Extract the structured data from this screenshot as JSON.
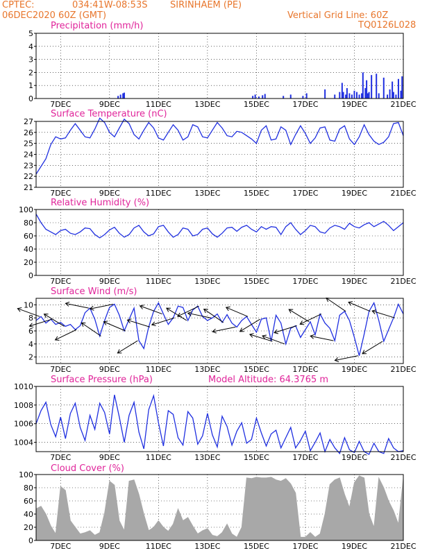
{
  "header": {
    "source": "CPTEC:",
    "coords": "034:41W-08:53S",
    "location": "SIRINHAEM (PE)",
    "run": "06DEC2020 60Z (GMT)",
    "grid_note": "Vertical Grid Line: 60Z",
    "model": "TQ0126L028"
  },
  "colors": {
    "header": "#e8762c",
    "titles": "#e0249a",
    "series": "#1f2fe0",
    "cloud": "#a8a8a8"
  },
  "x_labels": [
    "7DEC",
    "9DEC",
    "11DEC",
    "13DEC",
    "15DEC",
    "17DEC",
    "19DEC",
    "21DEC"
  ],
  "chart_data": [
    {
      "type": "bar",
      "title": "Precipitation (mm/h)",
      "ylim": [
        0,
        5
      ],
      "yticks": [
        0,
        1,
        2,
        3,
        4,
        5
      ],
      "x_range_days": [
        6,
        21
      ],
      "x": [
        9.35,
        9.45,
        9.55,
        9.6,
        14.85,
        14.95,
        15.1,
        15.25,
        15.35,
        16.1,
        16.4,
        16.9,
        17.05,
        17.8,
        18.2,
        18.4,
        18.5,
        18.55,
        18.65,
        18.7,
        18.8,
        18.9,
        19.0,
        19.1,
        19.2,
        19.3,
        19.35,
        19.45,
        19.5,
        19.55,
        19.6,
        19.7,
        19.9,
        20.0,
        20.2,
        20.35,
        20.45,
        20.55,
        20.6,
        20.7,
        20.8,
        20.9,
        20.95
      ],
      "values": [
        0.2,
        0.3,
        0.4,
        0.45,
        0.2,
        0.3,
        0.15,
        0.25,
        0.35,
        0.2,
        0.3,
        0.2,
        0.4,
        0.7,
        0.3,
        0.5,
        1.2,
        0.5,
        0.3,
        0.8,
        0.4,
        0.3,
        0.6,
        0.5,
        0.3,
        0.4,
        2.0,
        0.8,
        1.4,
        0.4,
        0.5,
        1.8,
        1.9,
        0.4,
        1.6,
        0.3,
        0.7,
        1.3,
        0.5,
        0.3,
        1.5,
        0.6,
        1.7
      ]
    },
    {
      "type": "line",
      "title": "Surface Temperature (nC)",
      "ylim": [
        21,
        27
      ],
      "yticks": [
        21,
        22,
        23,
        24,
        25,
        26,
        27
      ],
      "x_range_days": [
        6,
        21
      ],
      "x": [
        6.0,
        6.2,
        6.4,
        6.6,
        6.8,
        7.0,
        7.2,
        7.4,
        7.6,
        7.8,
        8.0,
        8.2,
        8.4,
        8.6,
        8.8,
        9.0,
        9.2,
        9.4,
        9.6,
        9.8,
        10.0,
        10.2,
        10.4,
        10.6,
        10.8,
        11.0,
        11.2,
        11.4,
        11.6,
        11.8,
        12.0,
        12.2,
        12.4,
        12.6,
        12.8,
        13.0,
        13.2,
        13.4,
        13.6,
        13.8,
        14.0,
        14.2,
        14.4,
        14.6,
        14.8,
        15.0,
        15.2,
        15.4,
        15.6,
        15.8,
        16.0,
        16.2,
        16.4,
        16.6,
        16.8,
        17.0,
        17.2,
        17.4,
        17.6,
        17.8,
        18.0,
        18.2,
        18.4,
        18.6,
        18.8,
        19.0,
        19.2,
        19.4,
        19.6,
        19.8,
        20.0,
        20.2,
        20.4,
        20.6,
        20.8,
        21.0
      ],
      "values": [
        22.2,
        22.9,
        23.6,
        24.9,
        25.6,
        25.4,
        25.5,
        26.2,
        26.8,
        26.2,
        25.6,
        25.5,
        26.3,
        27.3,
        26.9,
        26.0,
        25.6,
        26.4,
        27.2,
        26.8,
        25.8,
        25.4,
        26.2,
        26.9,
        26.4,
        25.5,
        25.3,
        26.0,
        26.7,
        26.2,
        25.3,
        25.6,
        26.7,
        26.5,
        25.6,
        25.5,
        26.2,
        26.9,
        26.4,
        25.7,
        25.6,
        26.1,
        26.0,
        25.7,
        25.4,
        25.0,
        26.2,
        26.6,
        25.3,
        25.4,
        26.5,
        26.2,
        24.9,
        25.8,
        26.6,
        25.9,
        25.0,
        25.5,
        26.4,
        26.5,
        25.3,
        25.2,
        26.3,
        26.6,
        25.4,
        24.9,
        25.6,
        26.7,
        25.8,
        25.2,
        24.9,
        25.1,
        25.6,
        26.8,
        26.9,
        25.7
      ]
    },
    {
      "type": "line",
      "title": "Relative Humidity (%)",
      "ylim": [
        0,
        100
      ],
      "yticks": [
        0,
        20,
        40,
        60,
        80,
        100
      ],
      "x_range_days": [
        6,
        21
      ],
      "x": [
        6.0,
        6.2,
        6.4,
        6.6,
        6.8,
        7.0,
        7.2,
        7.4,
        7.6,
        7.8,
        8.0,
        8.2,
        8.4,
        8.6,
        8.8,
        9.0,
        9.2,
        9.4,
        9.6,
        9.8,
        10.0,
        10.2,
        10.4,
        10.6,
        10.8,
        11.0,
        11.2,
        11.4,
        11.6,
        11.8,
        12.0,
        12.2,
        12.4,
        12.6,
        12.8,
        13.0,
        13.2,
        13.4,
        13.6,
        13.8,
        14.0,
        14.2,
        14.4,
        14.6,
        14.8,
        15.0,
        15.2,
        15.4,
        15.6,
        15.8,
        16.0,
        16.2,
        16.4,
        16.6,
        16.8,
        17.0,
        17.2,
        17.4,
        17.6,
        17.8,
        18.0,
        18.2,
        18.4,
        18.6,
        18.8,
        19.0,
        19.2,
        19.4,
        19.6,
        19.8,
        20.0,
        20.2,
        20.4,
        20.6,
        20.8,
        21.0
      ],
      "values": [
        93,
        80,
        70,
        66,
        62,
        68,
        70,
        64,
        62,
        66,
        72,
        71,
        62,
        57,
        62,
        69,
        73,
        64,
        58,
        62,
        72,
        76,
        66,
        60,
        63,
        74,
        76,
        66,
        58,
        62,
        72,
        70,
        60,
        62,
        70,
        72,
        63,
        58,
        64,
        72,
        73,
        67,
        73,
        76,
        70,
        66,
        74,
        70,
        74,
        73,
        62,
        74,
        80,
        70,
        62,
        68,
        76,
        74,
        66,
        64,
        72,
        76,
        74,
        70,
        79,
        74,
        72,
        77,
        80,
        74,
        78,
        82,
        76,
        68,
        74,
        80
      ]
    },
    {
      "type": "line",
      "title": "Surface Wind (m/s)",
      "ylim": [
        1,
        11
      ],
      "yticks": [
        2,
        4,
        6,
        8,
        10
      ],
      "x_range_days": [
        6,
        21
      ],
      "x": [
        6.0,
        6.2,
        6.4,
        6.6,
        6.8,
        7.0,
        7.2,
        7.4,
        7.6,
        7.8,
        8.0,
        8.2,
        8.4,
        8.6,
        8.8,
        9.0,
        9.2,
        9.4,
        9.6,
        9.8,
        10.0,
        10.2,
        10.4,
        10.6,
        10.8,
        11.0,
        11.2,
        11.4,
        11.6,
        11.8,
        12.0,
        12.2,
        12.4,
        12.6,
        12.8,
        13.0,
        13.2,
        13.4,
        13.6,
        13.8,
        14.0,
        14.2,
        14.4,
        14.6,
        14.8,
        15.0,
        15.2,
        15.4,
        15.6,
        15.8,
        16.0,
        16.2,
        16.4,
        16.6,
        16.8,
        17.0,
        17.2,
        17.4,
        17.6,
        17.8,
        18.0,
        18.2,
        18.4,
        18.6,
        18.8,
        19.0,
        19.2,
        19.4,
        19.6,
        19.8,
        20.0,
        20.2,
        20.4,
        20.6,
        20.8,
        21.0
      ],
      "values": [
        7.6,
        8.2,
        7.2,
        7.8,
        7.0,
        7.3,
        6.7,
        7.0,
        6.2,
        6.8,
        8.8,
        9.5,
        7.8,
        5.2,
        7.6,
        9.6,
        10.1,
        8.4,
        6.0,
        7.8,
        9.5,
        4.5,
        3.3,
        6.6,
        9.0,
        10.3,
        8.6,
        7.0,
        8.0,
        9.8,
        9.6,
        7.6,
        9.2,
        9.8,
        8.2,
        7.6,
        8.0,
        8.6,
        7.3,
        8.5,
        7.2,
        6.6,
        7.6,
        8.2,
        7.0,
        5.8,
        7.8,
        8.0,
        4.4,
        8.4,
        7.2,
        4.0,
        6.4,
        6.8,
        5.0,
        6.2,
        7.4,
        5.4,
        8.6,
        7.2,
        6.4,
        4.5,
        8.4,
        9.0,
        7.6,
        5.0,
        2.2,
        5.5,
        9.0,
        10.3,
        7.6,
        4.4,
        6.2,
        8.0,
        10.1,
        8.6
      ]
    },
    {
      "type": "line",
      "title": "Surface Pressure (hPa)",
      "annotation": "Model Altitude: 64.3765 m",
      "ylim": [
        1003,
        1010
      ],
      "yticks": [
        1004,
        1006,
        1008,
        1010
      ],
      "x_range_days": [
        6,
        21
      ],
      "x": [
        6.0,
        6.2,
        6.4,
        6.6,
        6.8,
        7.0,
        7.2,
        7.4,
        7.6,
        7.8,
        8.0,
        8.2,
        8.4,
        8.6,
        8.8,
        9.0,
        9.2,
        9.4,
        9.6,
        9.8,
        10.0,
        10.2,
        10.4,
        10.6,
        10.8,
        11.0,
        11.2,
        11.4,
        11.6,
        11.8,
        12.0,
        12.2,
        12.4,
        12.6,
        12.8,
        13.0,
        13.2,
        13.4,
        13.6,
        13.8,
        14.0,
        14.2,
        14.4,
        14.6,
        14.8,
        15.0,
        15.2,
        15.4,
        15.6,
        15.8,
        16.0,
        16.2,
        16.4,
        16.6,
        16.8,
        17.0,
        17.2,
        17.4,
        17.6,
        17.8,
        18.0,
        18.2,
        18.4,
        18.6,
        18.8,
        19.0,
        19.2,
        19.4,
        19.6,
        19.8,
        20.0,
        20.2,
        20.4,
        20.6,
        20.8,
        21.0
      ],
      "values": [
        1006.0,
        1007.4,
        1008.3,
        1005.9,
        1004.6,
        1006.7,
        1004.4,
        1007.1,
        1008.2,
        1005.6,
        1004.2,
        1006.9,
        1005.4,
        1008.2,
        1007.2,
        1004.9,
        1009.1,
        1006.7,
        1004.0,
        1006.9,
        1008.3,
        1005.1,
        1003.3,
        1007.5,
        1009.0,
        1006.1,
        1003.6,
        1007.4,
        1007.0,
        1004.5,
        1003.7,
        1007.3,
        1006.6,
        1003.8,
        1004.7,
        1007.1,
        1004.8,
        1003.5,
        1006.8,
        1005.7,
        1003.7,
        1005.2,
        1006.1,
        1003.9,
        1004.3,
        1006.6,
        1005.0,
        1003.6,
        1004.9,
        1005.3,
        1003.4,
        1004.5,
        1005.6,
        1003.4,
        1004.2,
        1005.2,
        1003.1,
        1004.0,
        1005.0,
        1003.0,
        1004.3,
        1003.4,
        1002.8,
        1004.5,
        1003.2,
        1002.9,
        1004.1,
        1003.0,
        1002.7,
        1003.9,
        1003.0,
        1002.8,
        1004.4,
        1003.4,
        1003.0,
        1003.1
      ]
    },
    {
      "type": "area",
      "title": "Cloud Cover (%)",
      "ylim": [
        0,
        100
      ],
      "yticks": [
        0,
        20,
        40,
        60,
        80,
        100
      ],
      "x_range_days": [
        6,
        21
      ],
      "x": [
        6.0,
        6.2,
        6.4,
        6.6,
        6.8,
        7.0,
        7.2,
        7.4,
        7.6,
        7.8,
        8.0,
        8.2,
        8.4,
        8.6,
        8.8,
        9.0,
        9.2,
        9.4,
        9.6,
        9.8,
        10.0,
        10.2,
        10.4,
        10.6,
        10.8,
        11.0,
        11.2,
        11.4,
        11.6,
        11.8,
        12.0,
        12.2,
        12.4,
        12.6,
        12.8,
        13.0,
        13.2,
        13.4,
        13.6,
        13.8,
        14.0,
        14.2,
        14.4,
        14.6,
        14.8,
        15.0,
        15.2,
        15.4,
        15.6,
        15.8,
        16.0,
        16.2,
        16.4,
        16.6,
        16.8,
        17.0,
        17.2,
        17.4,
        17.6,
        17.8,
        18.0,
        18.2,
        18.4,
        18.6,
        18.8,
        19.0,
        19.2,
        19.4,
        19.6,
        19.8,
        20.0,
        20.2,
        20.4,
        20.6,
        20.8,
        21.0
      ],
      "values": [
        48,
        52,
        40,
        22,
        10,
        82,
        76,
        30,
        20,
        10,
        12,
        15,
        8,
        12,
        42,
        90,
        84,
        30,
        15,
        90,
        92,
        70,
        40,
        15,
        20,
        30,
        20,
        14,
        25,
        48,
        30,
        35,
        22,
        10,
        15,
        18,
        8,
        6,
        12,
        25,
        10,
        5,
        20,
        95,
        94,
        96,
        95,
        95,
        96,
        92,
        90,
        94,
        86,
        72,
        5,
        5,
        12,
        5,
        10,
        40,
        85,
        92,
        95,
        70,
        50,
        88,
        98,
        95,
        40,
        20,
        95,
        80,
        60,
        45,
        25,
        95
      ]
    }
  ]
}
